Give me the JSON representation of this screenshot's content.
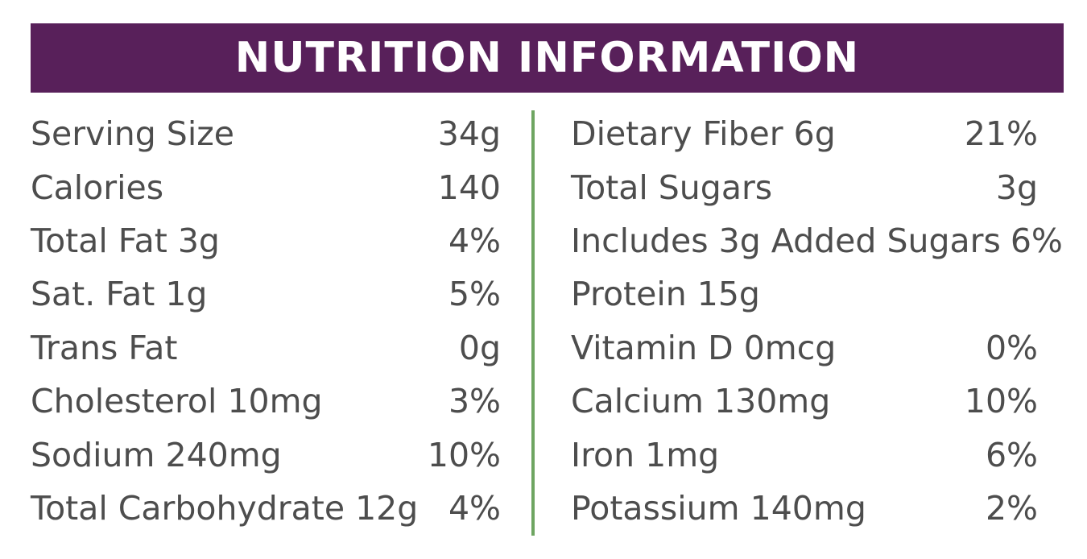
{
  "header": {
    "title": "NUTRITION INFORMATION"
  },
  "colors": {
    "header_bg": "#58205a",
    "divider": "#6ea561",
    "text": "#4d4d4d"
  },
  "left_column": [
    {
      "label": "Serving Size",
      "value": "34g"
    },
    {
      "label": "Calories",
      "value": "140"
    },
    {
      "label": "Total Fat 3g",
      "value": "4%"
    },
    {
      "label": "Sat. Fat 1g",
      "value": "5%"
    },
    {
      "label": "Trans Fat",
      "value": "0g"
    },
    {
      "label": "Cholesterol 10mg",
      "value": "3%"
    },
    {
      "label": "Sodium 240mg",
      "value": "10%"
    },
    {
      "label": "Total Carbohydrate 12g",
      "value": "4%"
    }
  ],
  "right_column": [
    {
      "label": "Dietary Fiber 6g",
      "value": "21%"
    },
    {
      "label": "Total Sugars",
      "value": "3g"
    },
    {
      "label": "Includes 3g Added Sugars",
      "value": "6%"
    },
    {
      "label": "Protein 15g",
      "value": ""
    },
    {
      "label": "Vitamin D 0mcg",
      "value": "0%"
    },
    {
      "label": "Calcium 130mg",
      "value": "10%"
    },
    {
      "label": "Iron 1mg",
      "value": "6%"
    },
    {
      "label": "Potassium 140mg",
      "value": "2%"
    }
  ]
}
